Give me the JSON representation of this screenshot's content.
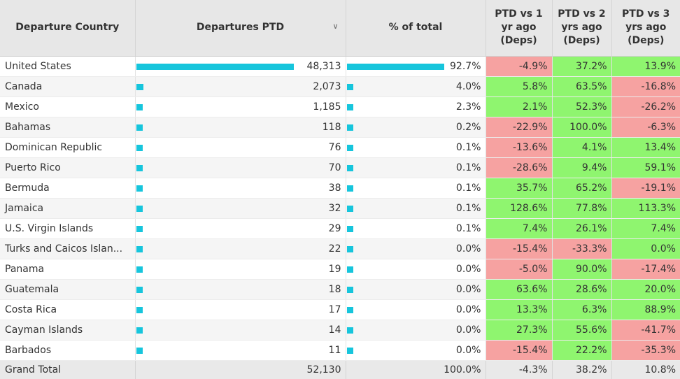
{
  "colors": {
    "bar": "#16c5dc",
    "positive": "#8ff56f",
    "negative": "#f6a2a1",
    "header_bg": "#e7e7e7"
  },
  "headers": {
    "country": "Departure Country",
    "departures": "Departures PTD",
    "sort_icon": "chevron-down-icon",
    "pct": "% of total",
    "vs1": "PTD vs 1 yr ago (Deps)",
    "vs2": "PTD vs 2 yrs ago (Deps)",
    "vs3": "PTD vs 3 yrs ago (Deps)"
  },
  "rows": [
    {
      "country": "United States",
      "departures": "48,313",
      "dep_value": 48313,
      "pct": "92.7%",
      "pct_value": 0.927,
      "vs1": "-4.9%",
      "vs2": "37.2%",
      "vs3": "13.9%"
    },
    {
      "country": "Canada",
      "departures": "2,073",
      "dep_value": 2073,
      "pct": "4.0%",
      "pct_value": 0.04,
      "vs1": "5.8%",
      "vs2": "63.5%",
      "vs3": "-16.8%"
    },
    {
      "country": "Mexico",
      "departures": "1,185",
      "dep_value": 1185,
      "pct": "2.3%",
      "pct_value": 0.023,
      "vs1": "2.1%",
      "vs2": "52.3%",
      "vs3": "-26.2%"
    },
    {
      "country": "Bahamas",
      "departures": "118",
      "dep_value": 118,
      "pct": "0.2%",
      "pct_value": 0.002,
      "vs1": "-22.9%",
      "vs2": "100.0%",
      "vs3": "-6.3%"
    },
    {
      "country": "Dominican Republic",
      "departures": "76",
      "dep_value": 76,
      "pct": "0.1%",
      "pct_value": 0.001,
      "vs1": "-13.6%",
      "vs2": "4.1%",
      "vs3": "13.4%"
    },
    {
      "country": "Puerto Rico",
      "departures": "70",
      "dep_value": 70,
      "pct": "0.1%",
      "pct_value": 0.001,
      "vs1": "-28.6%",
      "vs2": "9.4%",
      "vs3": "59.1%"
    },
    {
      "country": "Bermuda",
      "departures": "38",
      "dep_value": 38,
      "pct": "0.1%",
      "pct_value": 0.001,
      "vs1": "35.7%",
      "vs2": "65.2%",
      "vs3": "-19.1%"
    },
    {
      "country": "Jamaica",
      "departures": "32",
      "dep_value": 32,
      "pct": "0.1%",
      "pct_value": 0.001,
      "vs1": "128.6%",
      "vs2": "77.8%",
      "vs3": "113.3%"
    },
    {
      "country": "U.S. Virgin Islands",
      "departures": "29",
      "dep_value": 29,
      "pct": "0.1%",
      "pct_value": 0.001,
      "vs1": "7.4%",
      "vs2": "26.1%",
      "vs3": "7.4%"
    },
    {
      "country": "Turks and Caicos Islan...",
      "departures": "22",
      "dep_value": 22,
      "pct": "0.0%",
      "pct_value": 0.0,
      "vs1": "-15.4%",
      "vs2": "-33.3%",
      "vs3": "0.0%"
    },
    {
      "country": "Panama",
      "departures": "19",
      "dep_value": 19,
      "pct": "0.0%",
      "pct_value": 0.0,
      "vs1": "-5.0%",
      "vs2": "90.0%",
      "vs3": "-17.4%"
    },
    {
      "country": "Guatemala",
      "departures": "18",
      "dep_value": 18,
      "pct": "0.0%",
      "pct_value": 0.0,
      "vs1": "63.6%",
      "vs2": "28.6%",
      "vs3": "20.0%"
    },
    {
      "country": "Costa Rica",
      "departures": "17",
      "dep_value": 17,
      "pct": "0.0%",
      "pct_value": 0.0,
      "vs1": "13.3%",
      "vs2": "6.3%",
      "vs3": "88.9%"
    },
    {
      "country": "Cayman Islands",
      "departures": "14",
      "dep_value": 14,
      "pct": "0.0%",
      "pct_value": 0.0,
      "vs1": "27.3%",
      "vs2": "55.6%",
      "vs3": "-41.7%"
    },
    {
      "country": "Barbados",
      "departures": "11",
      "dep_value": 11,
      "pct": "0.0%",
      "pct_value": 0.0,
      "vs1": "-15.4%",
      "vs2": "22.2%",
      "vs3": "-35.3%"
    }
  ],
  "total": {
    "label": "Grand Total",
    "departures": "52,130",
    "pct": "100.0%",
    "vs1": "-4.3%",
    "vs2": "38.2%",
    "vs3": "10.8%"
  }
}
